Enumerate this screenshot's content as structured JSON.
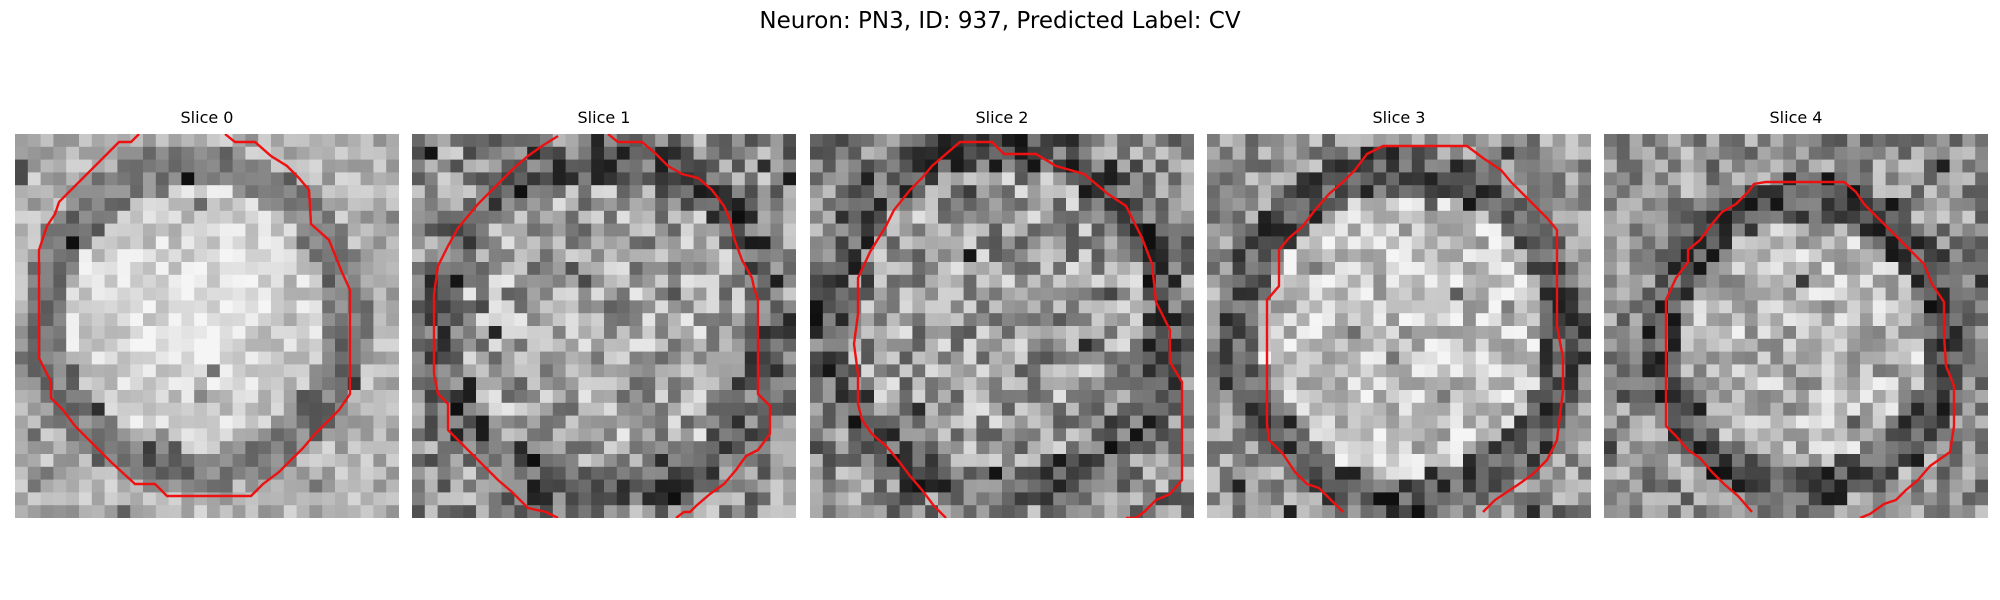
{
  "figure": {
    "title": "Neuron: PN3, ID: 937, Predicted Label: CV",
    "outline_color": "#ee1111",
    "colormap": "grayscale"
  },
  "panels": [
    {
      "title": "Slice 0"
    },
    {
      "title": "Slice 1"
    },
    {
      "title": "Slice 2"
    },
    {
      "title": "Slice 3"
    },
    {
      "title": "Slice 4"
    }
  ]
}
